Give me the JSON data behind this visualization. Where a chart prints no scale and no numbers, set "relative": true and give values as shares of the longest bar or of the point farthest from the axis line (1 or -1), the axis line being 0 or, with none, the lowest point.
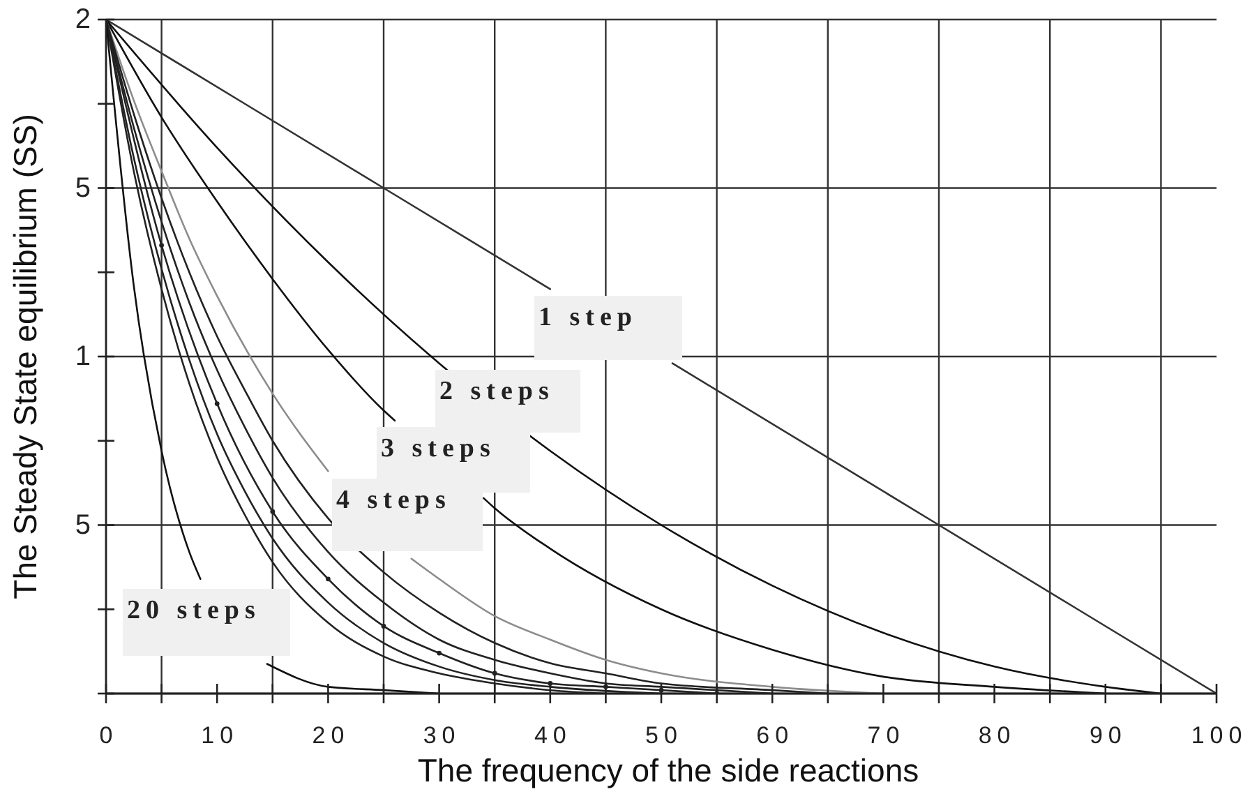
{
  "chart_data": {
    "type": "line",
    "xlabel": "The frequency of the side reactions",
    "ylabel": "The Steady State equilibrium (SS)",
    "annotations": [
      "2",
      "5",
      "1",
      "5"
    ],
    "relative": true,
    "xlim": [
      0,
      100
    ],
    "xticks": [
      0,
      {
        "value": 5,
        "label": null
      },
      10,
      {
        "value": 15,
        "label": null
      },
      20,
      {
        "value": 25,
        "label": null
      },
      30,
      {
        "value": 35,
        "label": null
      },
      40,
      {
        "value": 45,
        "label": null
      },
      50,
      {
        "value": 55,
        "label": null
      },
      60,
      {
        "value": 65,
        "label": null
      },
      70,
      {
        "value": 75,
        "label": null
      },
      80,
      {
        "value": 85,
        "label": null
      },
      90,
      {
        "value": 95,
        "label": null
      },
      100
    ],
    "grid": true,
    "marker": "none",
    "line_style": "solid",
    "series": [
      {
        "name": "1 step",
        "color": "#333333",
        "x": [
          0,
          25,
          40,
          45,
          51,
          75,
          100
        ],
        "values": [
          1,
          0.75,
          0.6,
          null,
          0.49,
          0.25,
          0
        ]
      },
      {
        "name": "2 steps",
        "color": "#111111",
        "x": [
          0,
          10,
          20,
          30,
          40,
          50,
          60,
          70,
          80,
          90,
          95
        ],
        "values": [
          1,
          0.81,
          0.64,
          0.49,
          0.36,
          0.25,
          0.16,
          0.09,
          0.04,
          0.01,
          0
        ]
      },
      {
        "name": "3 steps",
        "color": "#111111",
        "x": [
          0,
          5,
          10,
          15,
          20,
          25,
          26,
          30,
          34,
          35,
          40,
          50,
          60,
          70,
          80,
          90
        ],
        "values": [
          1,
          0.855,
          0.73,
          0.615,
          0.51,
          0.42,
          0.405,
          null,
          0.29,
          0.275,
          0.215,
          0.125,
          0.065,
          0.025,
          0.01,
          0
        ]
      },
      {
        "name": "4 steps",
        "color": "#8c8c8c",
        "x": [
          0,
          2.5,
          5,
          7.5,
          10,
          15,
          20,
          25,
          27.5,
          30,
          35,
          40,
          45,
          50,
          60,
          70
        ],
        "values": [
          1,
          0.88,
          0.775,
          0.675,
          0.59,
          0.445,
          0.33,
          null,
          0.2,
          0.17,
          0.115,
          0.08,
          0.05,
          0.03,
          0.01,
          0
        ]
      },
      {
        "color": "#222222",
        "x": [
          0,
          2.5,
          5,
          7.5,
          10,
          12.5,
          15,
          20,
          25,
          30,
          35,
          40,
          45,
          50,
          60,
          65
        ],
        "values": [
          1,
          0.86,
          0.735,
          0.625,
          0.53,
          0.45,
          0.375,
          0.26,
          0.18,
          0.12,
          0.075,
          0.045,
          0.03,
          0.015,
          0.005,
          0
        ]
      },
      {
        "color": "#222222",
        "x": [
          0,
          2.5,
          5,
          7.5,
          10,
          12.5,
          15,
          20,
          25,
          30,
          35,
          40,
          45,
          50,
          60
        ],
        "values": [
          1,
          0.84,
          0.7,
          0.58,
          0.48,
          0.395,
          0.32,
          0.21,
          0.135,
          0.08,
          0.05,
          0.03,
          0.015,
          0.01,
          0
        ]
      },
      {
        "color": "#222222",
        "marker": "circle",
        "x": [
          0,
          5,
          10,
          15,
          20,
          25,
          30,
          35,
          40,
          45,
          50,
          55
        ],
        "values": [
          1,
          0.665,
          0.43,
          0.27,
          0.17,
          0.1,
          0.06,
          0.03,
          0.015,
          0.01,
          0.005,
          0
        ]
      },
      {
        "color": "#222222",
        "x": [
          0,
          2.5,
          5,
          7.5,
          10,
          12.5,
          15,
          20,
          25,
          30,
          35,
          40,
          50
        ],
        "values": [
          1,
          0.795,
          0.63,
          0.495,
          0.385,
          0.3,
          0.23,
          0.135,
          0.075,
          0.04,
          0.02,
          0.01,
          0
        ]
      },
      {
        "color": "#222222",
        "x": [
          0,
          2.5,
          5,
          7.5,
          10,
          12.5,
          15,
          20,
          25,
          30,
          35,
          40,
          45
        ],
        "values": [
          1,
          0.775,
          0.6,
          0.46,
          0.35,
          0.265,
          0.195,
          0.105,
          0.055,
          0.03,
          0.015,
          0.005,
          0
        ]
      },
      {
        "name": "20 steps",
        "color": "#111111",
        "x": [
          0,
          2.5,
          5,
          7.5,
          8.5,
          11,
          14.5,
          20,
          25,
          30
        ],
        "values": [
          1,
          0.605,
          0.36,
          0.21,
          0.17,
          null,
          0.044,
          0.01,
          0.005,
          0
        ]
      }
    ]
  }
}
